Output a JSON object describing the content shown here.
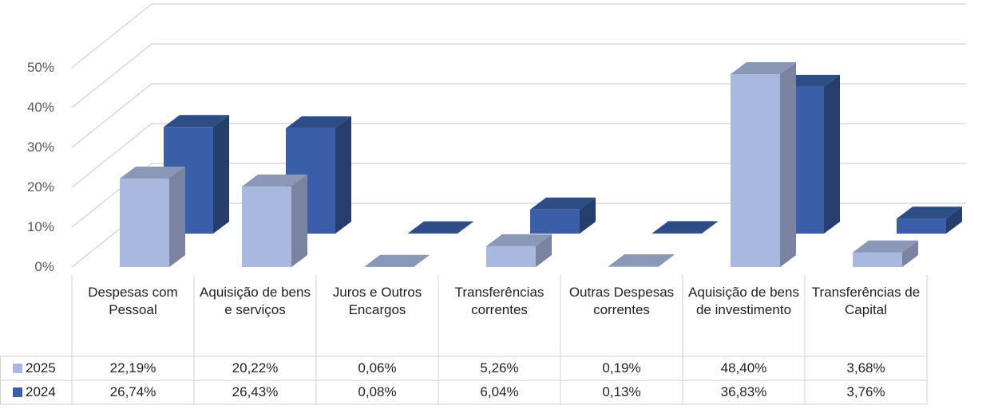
{
  "chart_data": {
    "type": "bar3d",
    "categories": [
      "Despesas com Pessoal",
      "Aquisição de bens e serviços",
      "Juros e Outros Encargos",
      "Transferências correntes",
      "Outras Despesas correntes",
      "Aquisição de bens de investimento",
      "Transferências de Capital"
    ],
    "series": [
      {
        "name": "2025",
        "color": "#a9b8de",
        "values": [
          22.19,
          20.22,
          0.06,
          5.26,
          0.19,
          48.4,
          3.68
        ],
        "value_labels": [
          "22,19%",
          "20,22%",
          "0,06%",
          "5,26%",
          "0,19%",
          "48,40%",
          "3,68%"
        ]
      },
      {
        "name": "2024",
        "color": "#3a5fa8",
        "values": [
          26.74,
          26.43,
          0.08,
          6.04,
          0.13,
          36.83,
          3.76
        ],
        "value_labels": [
          "26,74%",
          "26,43%",
          "0,08%",
          "6,04%",
          "0,13%",
          "36,83%",
          "3,76%"
        ]
      }
    ],
    "ylim": [
      0,
      60
    ],
    "yticks": [
      {
        "value": 0,
        "label": "0%"
      },
      {
        "value": 10,
        "label": "10%"
      },
      {
        "value": 20,
        "label": "20%"
      },
      {
        "value": 30,
        "label": "30%"
      },
      {
        "value": 40,
        "label": "40%"
      },
      {
        "value": 50,
        "label": "50%"
      }
    ],
    "grid": true,
    "legend": "table"
  }
}
